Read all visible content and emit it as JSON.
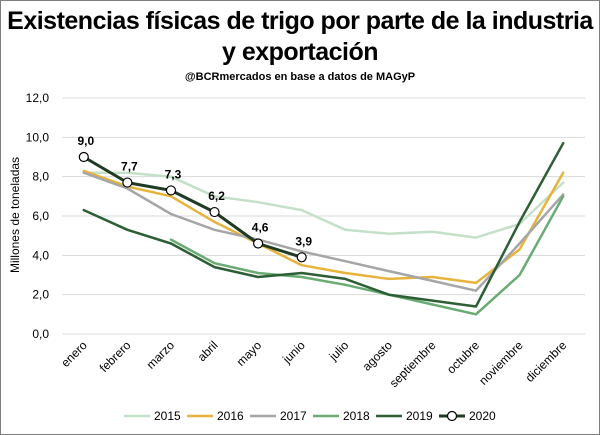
{
  "chart_data": {
    "type": "line",
    "title": "Existencias físicas de trigo por parte de la industria y exportación",
    "subtitle": "@BCRmercados en base a datos de MAGyP",
    "ylabel": "Millones de toneladas",
    "xlabel": "",
    "ylim": [
      0,
      12
    ],
    "yticks": [
      "0,0",
      "2,0",
      "4,0",
      "6,0",
      "8,0",
      "10,0",
      "12,0"
    ],
    "categories": [
      "enero",
      "febrero",
      "marzo",
      "abril",
      "mayo",
      "junio",
      "julio",
      "agosto",
      "septiembre",
      "octubre",
      "noviembre",
      "diciembre"
    ],
    "grid": true,
    "legend_position": "bottom",
    "series": [
      {
        "name": "2015",
        "color": "#c5e0c8",
        "width": 2.5,
        "values": [
          8.2,
          8.2,
          8.0,
          7.0,
          6.7,
          6.3,
          5.3,
          5.1,
          5.2,
          4.9,
          5.6,
          7.7
        ]
      },
      {
        "name": "2016",
        "color": "#e6b43c",
        "width": 2.5,
        "values": [
          8.3,
          7.5,
          7.0,
          5.7,
          4.6,
          3.5,
          3.1,
          2.8,
          2.9,
          2.6,
          4.3,
          8.2
        ]
      },
      {
        "name": "2017",
        "color": "#a6a6a6",
        "width": 2.5,
        "values": [
          8.2,
          7.4,
          6.1,
          5.3,
          4.8,
          4.2,
          3.7,
          3.2,
          2.7,
          2.2,
          4.6,
          7.1
        ]
      },
      {
        "name": "2018",
        "color": "#6aab73",
        "width": 2.5,
        "values": [
          null,
          null,
          4.8,
          3.6,
          3.1,
          2.9,
          2.5,
          2.0,
          1.5,
          1.0,
          3.0,
          7.0
        ]
      },
      {
        "name": "2019",
        "color": "#2d5e35",
        "width": 2.5,
        "values": [
          6.3,
          5.3,
          4.6,
          3.4,
          2.9,
          3.1,
          2.8,
          2.0,
          1.7,
          1.4,
          5.7,
          9.7
        ]
      },
      {
        "name": "2020",
        "color": "#1f3b24",
        "width": 3,
        "markers": true,
        "values": [
          9.0,
          7.7,
          7.3,
          6.2,
          4.6,
          3.9,
          null,
          null,
          null,
          null,
          null,
          null
        ],
        "data_labels": [
          "9,0",
          "7,7",
          "7,3",
          "6,2",
          "4,6",
          "3,9"
        ]
      }
    ]
  }
}
